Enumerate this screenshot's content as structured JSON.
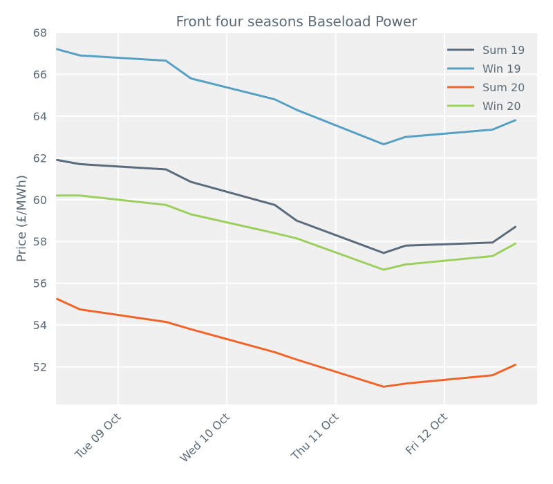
{
  "chart_data": {
    "type": "line",
    "title": "Front four seasons Baseload Power",
    "xlabel": "",
    "ylabel": "Price (£/MWh)",
    "ylim": [
      50.2,
      68
    ],
    "xlim": [
      -0.57,
      3.85
    ],
    "y_ticks": [
      52,
      54,
      56,
      58,
      60,
      62,
      64,
      66,
      68
    ],
    "x_ticks": [
      {
        "pos": 0,
        "label": "Tue 09 Oct"
      },
      {
        "pos": 1,
        "label": "Wed 10 Oct"
      },
      {
        "pos": 2,
        "label": "Thu 11 Oct"
      },
      {
        "pos": 3,
        "label": "Fri 12 Oct"
      }
    ],
    "x": [
      -0.56,
      -0.35,
      0.44,
      0.67,
      1.44,
      1.64,
      2.44,
      2.64,
      3.44,
      3.65
    ],
    "grid": true,
    "legend_position": "top-right",
    "series": [
      {
        "name": "Sum 19",
        "color": "#5a6b7b",
        "values": [
          61.9,
          61.7,
          61.45,
          60.85,
          59.75,
          59.0,
          57.45,
          57.8,
          57.95,
          58.7
        ]
      },
      {
        "name": "Win 19",
        "color": "#56a0c4",
        "values": [
          67.2,
          66.9,
          66.65,
          65.8,
          64.8,
          64.3,
          62.65,
          63.0,
          63.35,
          63.8
        ]
      },
      {
        "name": "Sum 20",
        "color": "#f0642a",
        "values": [
          55.25,
          54.75,
          54.15,
          53.8,
          52.7,
          52.35,
          51.05,
          51.2,
          51.6,
          52.1
        ]
      },
      {
        "name": "Win 20",
        "color": "#9bcf5e",
        "values": [
          60.2,
          60.2,
          59.75,
          59.3,
          58.4,
          58.15,
          56.65,
          56.9,
          57.3,
          57.9
        ]
      }
    ]
  }
}
